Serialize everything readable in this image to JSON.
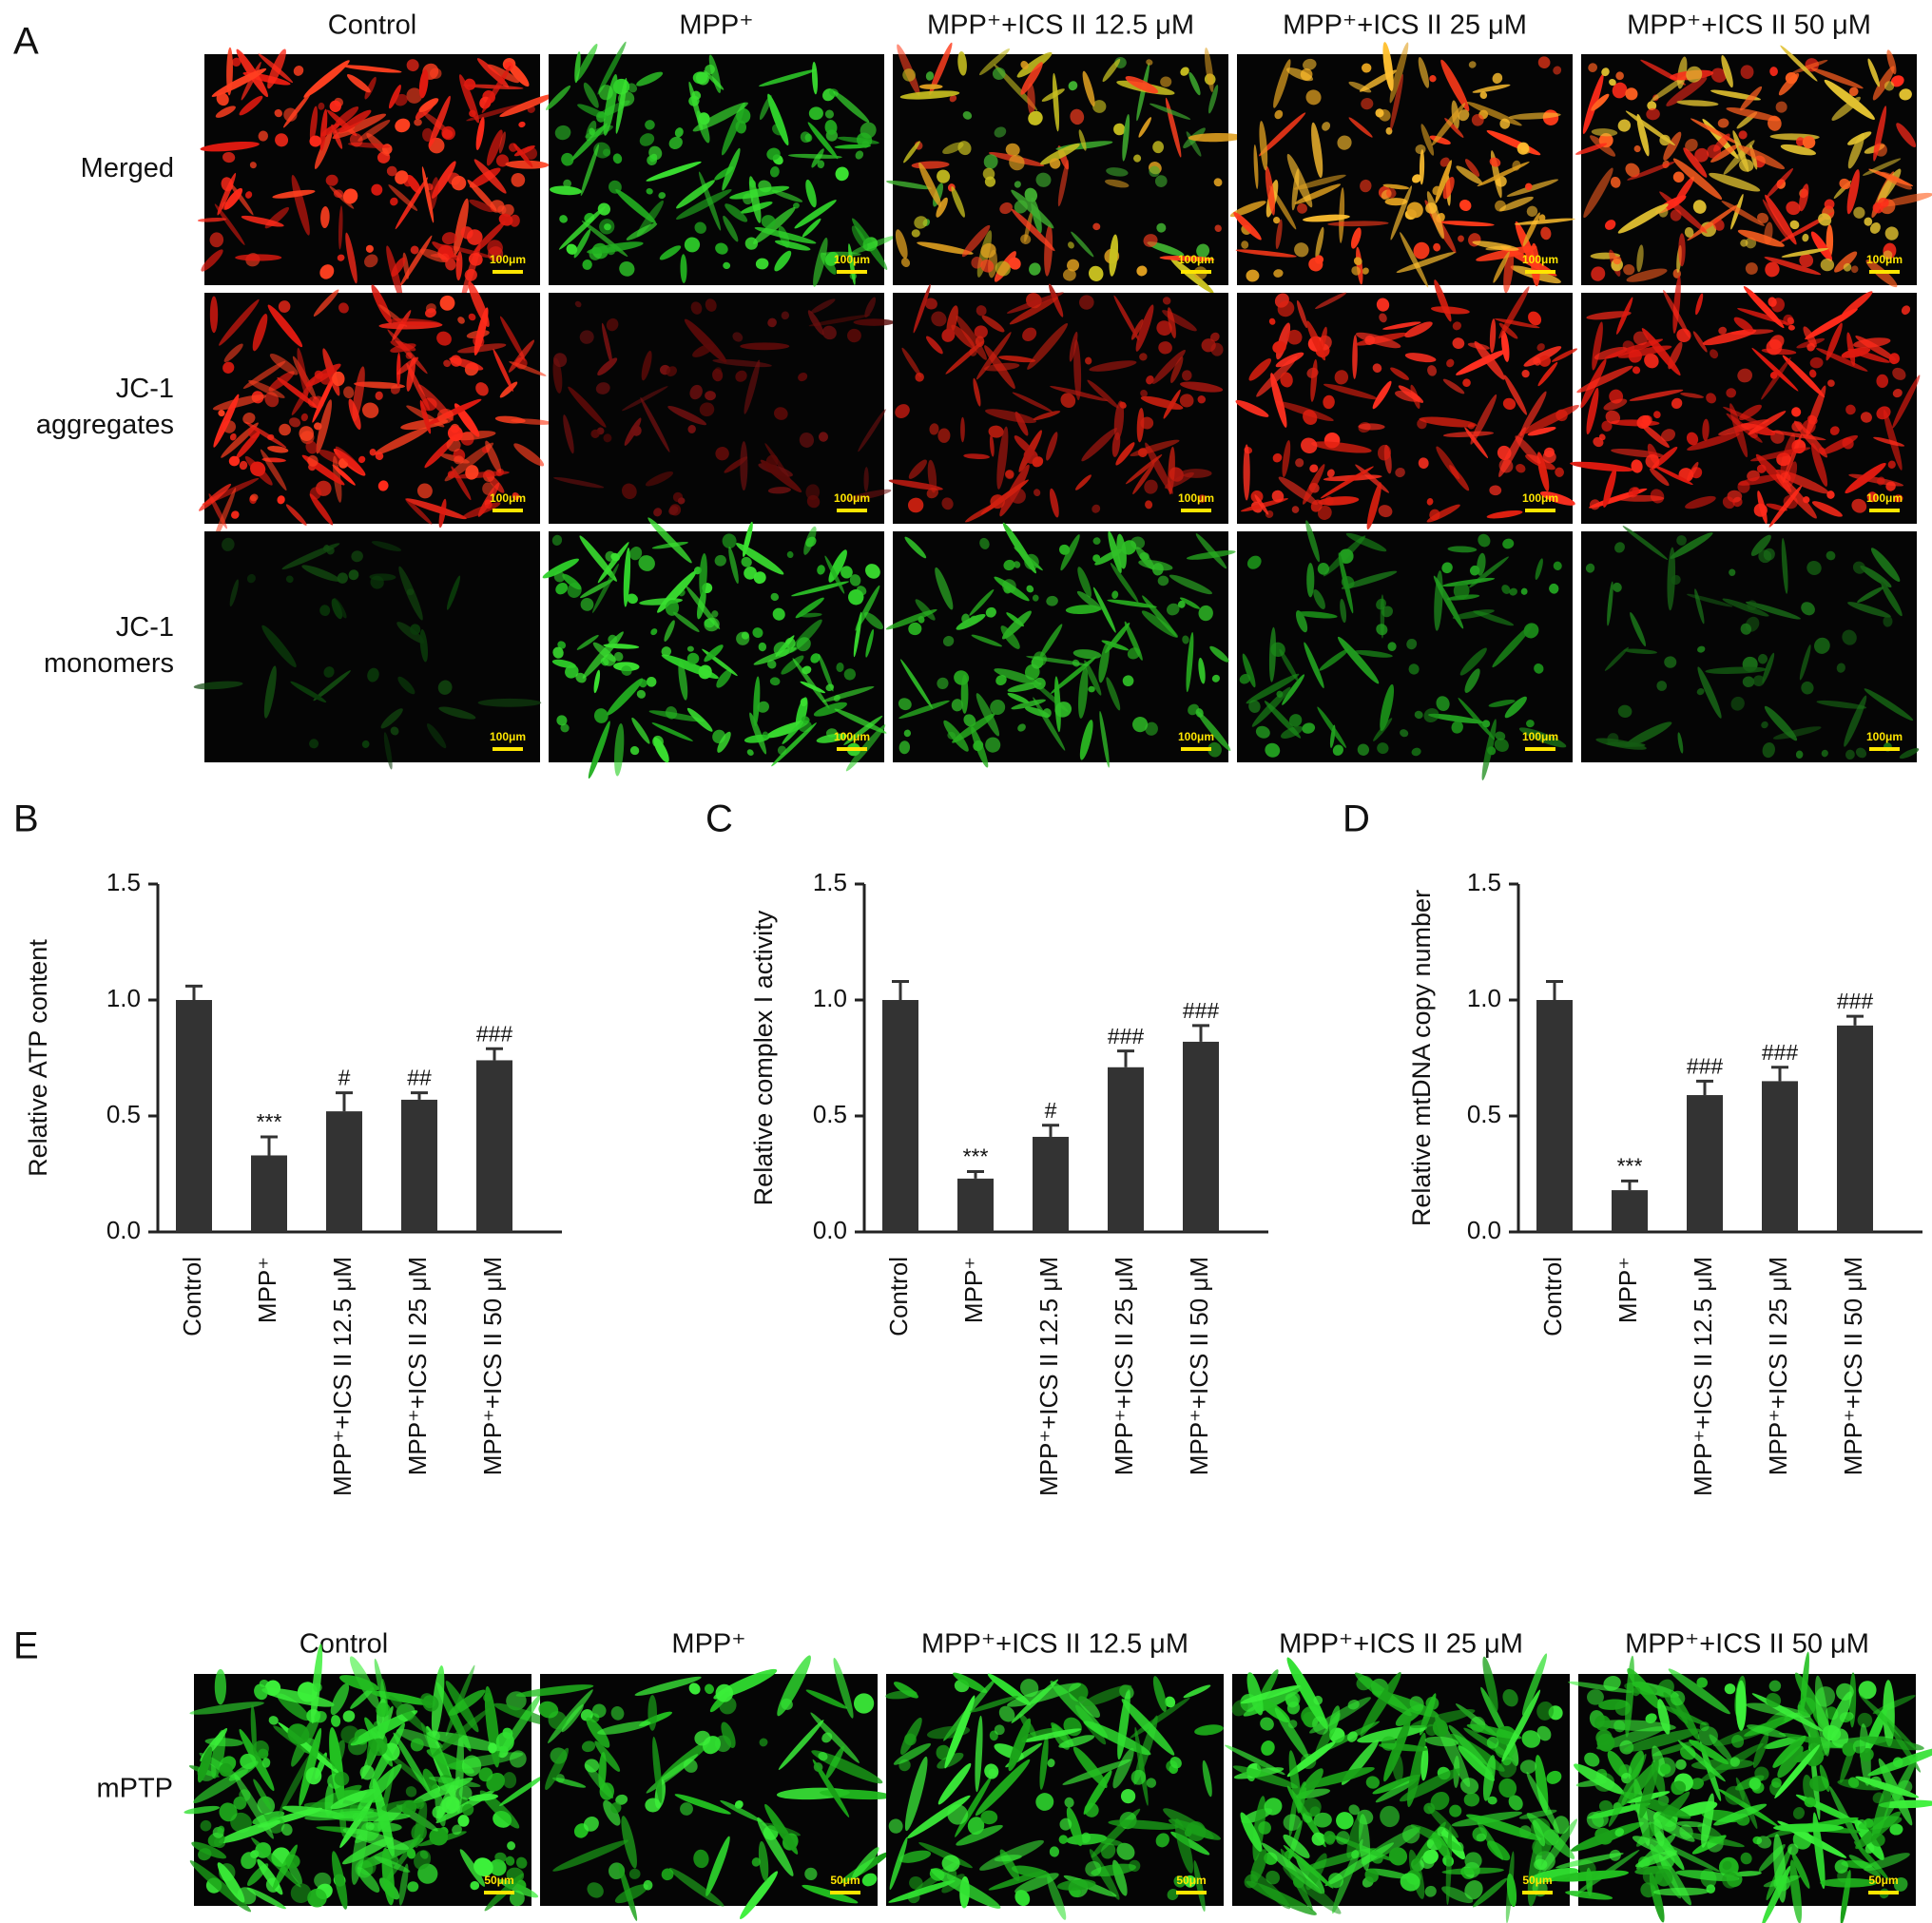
{
  "panel_a": {
    "label": "A",
    "columns": [
      "Control",
      "MPP⁺",
      "MPP⁺+ICS II 12.5 μM",
      "MPP⁺+ICS II 25 μM",
      "MPP⁺+ICS II 50 μM"
    ],
    "rows": [
      [
        "Merged"
      ],
      [
        "JC-1",
        "aggregates"
      ],
      [
        "JC-1",
        "monomers"
      ]
    ],
    "scale_bar": "100μm"
  },
  "chart_data": [
    {
      "type": "bar",
      "panel_label": "B",
      "ylabel": "Relative ATP content",
      "categories": [
        "Control",
        "MPP⁺",
        "MPP⁺+ICS II 12.5 μM",
        "MPP⁺+ICS II 25 μM",
        "MPP⁺+ICS II 50 μM"
      ],
      "values": [
        1.0,
        0.33,
        0.52,
        0.57,
        0.74
      ],
      "errors": [
        0.06,
        0.08,
        0.08,
        0.03,
        0.05
      ],
      "annotations": [
        null,
        "***",
        "#",
        "##",
        "###"
      ],
      "color": "#333333",
      "ylim": [
        0,
        1.5
      ],
      "yticks": [
        {
          "value": 0,
          "label": "0.0"
        },
        0.5,
        {
          "value": 1,
          "label": "1.0"
        },
        1.5
      ]
    },
    {
      "type": "bar",
      "panel_label": "C",
      "ylabel": "Relative complex I activity",
      "categories": [
        "Control",
        "MPP⁺",
        "MPP⁺+ICS II 12.5 μM",
        "MPP⁺+ICS II 25 μM",
        "MPP⁺+ICS II 50 μM"
      ],
      "values": [
        1.0,
        0.23,
        0.41,
        0.71,
        0.82
      ],
      "errors": [
        0.08,
        0.03,
        0.05,
        0.07,
        0.07
      ],
      "annotations": [
        null,
        "***",
        "#",
        "###",
        "###"
      ],
      "color": "#333333",
      "ylim": [
        0,
        1.5
      ],
      "yticks": [
        {
          "value": 0,
          "label": "0.0"
        },
        0.5,
        {
          "value": 1,
          "label": "1.0"
        },
        1.5
      ]
    },
    {
      "type": "bar",
      "panel_label": "D",
      "ylabel": "Relative mtDNA copy number",
      "categories": [
        "Control",
        "MPP⁺",
        "MPP⁺+ICS II 12.5 μM",
        "MPP⁺+ICS II 25 μM",
        "MPP⁺+ICS II 50 μM"
      ],
      "values": [
        1.0,
        0.18,
        0.59,
        0.65,
        0.89
      ],
      "errors": [
        0.08,
        0.04,
        0.06,
        0.06,
        0.04
      ],
      "annotations": [
        null,
        "***",
        "###",
        "###",
        "###"
      ],
      "color": "#333333",
      "ylim": [
        0,
        1.5
      ],
      "yticks": [
        {
          "value": 0,
          "label": "0.0"
        },
        0.5,
        {
          "value": 1,
          "label": "1.0"
        },
        1.5
      ]
    }
  ],
  "panel_e": {
    "label": "E",
    "columns": [
      "Control",
      "MPP⁺",
      "MPP⁺+ICS II 12.5 μM",
      "MPP⁺+ICS II 25 μM",
      "MPP⁺+ICS II 50 μM"
    ],
    "row": "mPTP",
    "scale_bar": "50μm"
  }
}
